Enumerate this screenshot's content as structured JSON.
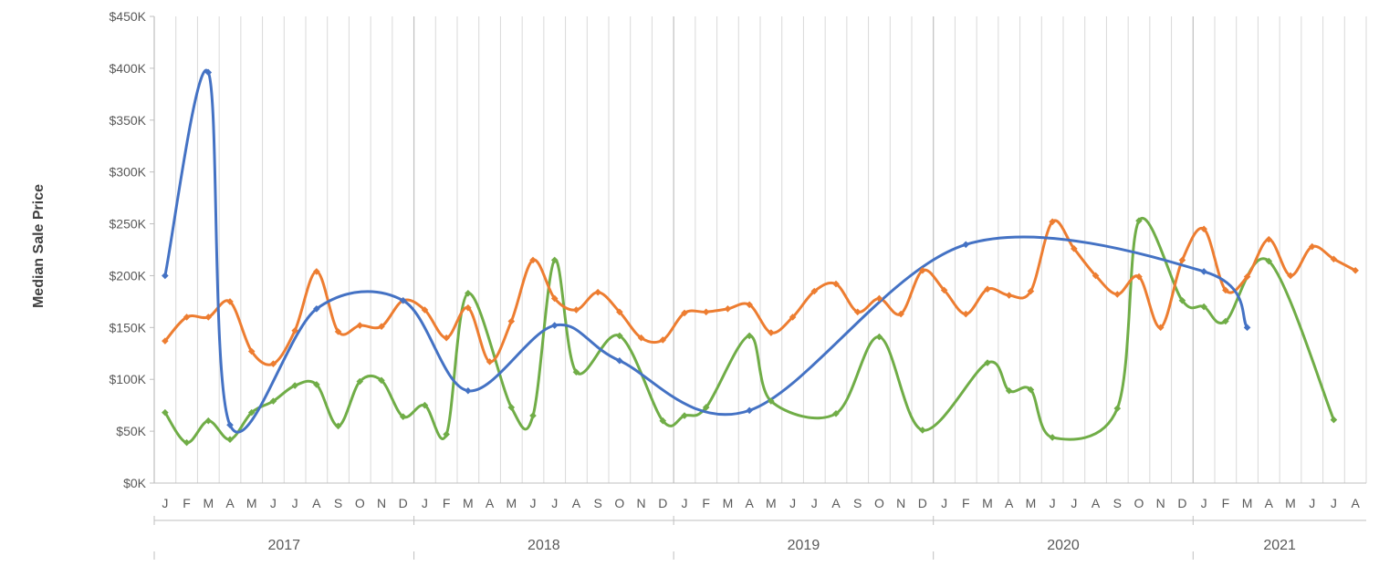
{
  "chart_data": {
    "type": "line",
    "ylabel": "Median Sale Price",
    "xlabel": "",
    "ylim": [
      0,
      450000
    ],
    "y_ticks": [
      "$0K",
      "$50K",
      "$100K",
      "$150K",
      "$200K",
      "$250K",
      "$300K",
      "$350K",
      "$400K",
      "$450K"
    ],
    "grid": "vertical gridlines at each month",
    "legend": "none",
    "start_month": "2017-01",
    "month_labels": [
      "J",
      "F",
      "M",
      "A",
      "M",
      "J",
      "J",
      "A",
      "S",
      "O",
      "N",
      "D",
      "J",
      "F",
      "M",
      "A",
      "M",
      "J",
      "J",
      "A",
      "S",
      "O",
      "N",
      "D",
      "J",
      "F",
      "M",
      "A",
      "M",
      "J",
      "J",
      "A",
      "S",
      "O",
      "N",
      "D",
      "J",
      "F",
      "M",
      "A",
      "M",
      "J",
      "J",
      "A",
      "S",
      "O",
      "N",
      "D",
      "J",
      "F",
      "M",
      "A",
      "M",
      "J",
      "J",
      "A"
    ],
    "years": [
      "2017",
      "2018",
      "2019",
      "2020",
      "2021"
    ],
    "series": [
      {
        "color": "#4472c4",
        "points": [
          {
            "m": 0,
            "v": 200000
          },
          {
            "m": 2,
            "v": 396000
          },
          {
            "m": 3,
            "v": 56000
          },
          {
            "m": 7,
            "v": 168000
          },
          {
            "m": 11,
            "v": 176000
          },
          {
            "m": 14,
            "v": 89000
          },
          {
            "m": 18,
            "v": 152000
          },
          {
            "m": 21,
            "v": 118000
          },
          {
            "m": 27,
            "v": 70000
          },
          {
            "m": 37,
            "v": 230000
          },
          {
            "m": 48,
            "v": 204000
          },
          {
            "m": 50,
            "v": 150000
          }
        ]
      },
      {
        "color": "#ed7d31",
        "points": [
          {
            "m": 0,
            "v": 137000
          },
          {
            "m": 1,
            "v": 160000
          },
          {
            "m": 2,
            "v": 160000
          },
          {
            "m": 3,
            "v": 175000
          },
          {
            "m": 4,
            "v": 127000
          },
          {
            "m": 5,
            "v": 115000
          },
          {
            "m": 6,
            "v": 147000
          },
          {
            "m": 7,
            "v": 204000
          },
          {
            "m": 8,
            "v": 146000
          },
          {
            "m": 9,
            "v": 152000
          },
          {
            "m": 10,
            "v": 151000
          },
          {
            "m": 11,
            "v": 176000
          },
          {
            "m": 12,
            "v": 167000
          },
          {
            "m": 13,
            "v": 140000
          },
          {
            "m": 14,
            "v": 169000
          },
          {
            "m": 15,
            "v": 117000
          },
          {
            "m": 16,
            "v": 156000
          },
          {
            "m": 17,
            "v": 215000
          },
          {
            "m": 18,
            "v": 178000
          },
          {
            "m": 19,
            "v": 167000
          },
          {
            "m": 20,
            "v": 184000
          },
          {
            "m": 21,
            "v": 165000
          },
          {
            "m": 22,
            "v": 140000
          },
          {
            "m": 23,
            "v": 138000
          },
          {
            "m": 24,
            "v": 164000
          },
          {
            "m": 25,
            "v": 165000
          },
          {
            "m": 26,
            "v": 168000
          },
          {
            "m": 27,
            "v": 172000
          },
          {
            "m": 28,
            "v": 145000
          },
          {
            "m": 29,
            "v": 160000
          },
          {
            "m": 30,
            "v": 185000
          },
          {
            "m": 31,
            "v": 192000
          },
          {
            "m": 32,
            "v": 165000
          },
          {
            "m": 33,
            "v": 178000
          },
          {
            "m": 34,
            "v": 163000
          },
          {
            "m": 35,
            "v": 205000
          },
          {
            "m": 36,
            "v": 186000
          },
          {
            "m": 37,
            "v": 163000
          },
          {
            "m": 38,
            "v": 187000
          },
          {
            "m": 39,
            "v": 181000
          },
          {
            "m": 40,
            "v": 185000
          },
          {
            "m": 41,
            "v": 252000
          },
          {
            "m": 42,
            "v": 226000
          },
          {
            "m": 43,
            "v": 200000
          },
          {
            "m": 44,
            "v": 182000
          },
          {
            "m": 45,
            "v": 199000
          },
          {
            "m": 46,
            "v": 150000
          },
          {
            "m": 47,
            "v": 215000
          },
          {
            "m": 48,
            "v": 245000
          },
          {
            "m": 49,
            "v": 186000
          },
          {
            "m": 50,
            "v": 199000
          },
          {
            "m": 51,
            "v": 235000
          },
          {
            "m": 52,
            "v": 200000
          },
          {
            "m": 53,
            "v": 228000
          },
          {
            "m": 54,
            "v": 216000
          },
          {
            "m": 55,
            "v": 205000
          }
        ]
      },
      {
        "color": "#70ad47",
        "points": [
          {
            "m": 0,
            "v": 68000
          },
          {
            "m": 1,
            "v": 39000
          },
          {
            "m": 2,
            "v": 60000
          },
          {
            "m": 3,
            "v": 42000
          },
          {
            "m": 4,
            "v": 68000
          },
          {
            "m": 5,
            "v": 79000
          },
          {
            "m": 6,
            "v": 94000
          },
          {
            "m": 7,
            "v": 95000
          },
          {
            "m": 8,
            "v": 55000
          },
          {
            "m": 9,
            "v": 98000
          },
          {
            "m": 10,
            "v": 99000
          },
          {
            "m": 11,
            "v": 64000
          },
          {
            "m": 12,
            "v": 75000
          },
          {
            "m": 13,
            "v": 47000
          },
          {
            "m": 14,
            "v": 183000
          },
          {
            "m": 16,
            "v": 73000
          },
          {
            "m": 17,
            "v": 65000
          },
          {
            "m": 18,
            "v": 215000
          },
          {
            "m": 19,
            "v": 107000
          },
          {
            "m": 21,
            "v": 142000
          },
          {
            "m": 23,
            "v": 60000
          },
          {
            "m": 24,
            "v": 65000
          },
          {
            "m": 25,
            "v": 73000
          },
          {
            "m": 27,
            "v": 142000
          },
          {
            "m": 28,
            "v": 79000
          },
          {
            "m": 31,
            "v": 67000
          },
          {
            "m": 33,
            "v": 141000
          },
          {
            "m": 35,
            "v": 51000
          },
          {
            "m": 38,
            "v": 116000
          },
          {
            "m": 39,
            "v": 89000
          },
          {
            "m": 40,
            "v": 90000
          },
          {
            "m": 41,
            "v": 44000
          },
          {
            "m": 44,
            "v": 72000
          },
          {
            "m": 45,
            "v": 253000
          },
          {
            "m": 47,
            "v": 176000
          },
          {
            "m": 48,
            "v": 170000
          },
          {
            "m": 49,
            "v": 156000
          },
          {
            "m": 51,
            "v": 214000
          },
          {
            "m": 54,
            "v": 61000
          }
        ]
      }
    ]
  }
}
